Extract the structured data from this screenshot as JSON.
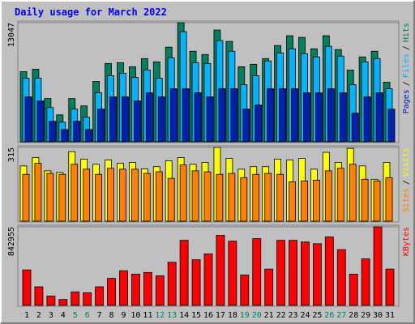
{
  "title": "Daily usage for March 2022",
  "weekend_color": "#008060",
  "chart_data": [
    {
      "type": "bar",
      "ylim": [
        0,
        13047
      ],
      "yticks": [
        13047
      ],
      "legend_separator": "/",
      "series": [
        {
          "name": "Hits",
          "color": "#00805c",
          "values": [
            7685,
            7953,
            4736,
            2949,
            4736,
            3932,
            6613,
            8579,
            8668,
            8221,
            9115,
            8758,
            10366,
            13047,
            9919,
            9562,
            12243,
            10992,
            8221,
            8489,
            9115,
            10545,
            11617,
            11438,
            10187,
            11617,
            10098,
            7864,
            9294,
            9919,
            6523
          ]
        },
        {
          "name": "Files",
          "color": "#00b4ff",
          "values": [
            6970,
            6970,
            3753,
            2145,
            3574,
            2681,
            5362,
            7238,
            7506,
            7060,
            7864,
            6970,
            9204,
            12064,
            8668,
            8579,
            11081,
            9919,
            6255,
            7238,
            8847,
            9740,
            10187,
            9651,
            9294,
            10455,
            9383,
            6255,
            8758,
            9115,
            5809
          ]
        },
        {
          "name": "Pages",
          "color": "#0020b0",
          "values": [
            4915,
            4468,
            2234,
            1340,
            2234,
            1340,
            3574,
            4915,
            4915,
            4468,
            5362,
            4915,
            5809,
            5809,
            5362,
            4915,
            5809,
            5809,
            3574,
            4021,
            5809,
            5809,
            5809,
            5362,
            5362,
            5809,
            5362,
            3128,
            4915,
            5362,
            3574
          ]
        }
      ]
    },
    {
      "type": "bar",
      "ylim": [
        0,
        315
      ],
      "yticks": [
        315
      ],
      "legend_separator": "/",
      "series": [
        {
          "name": "Visits",
          "color": "#ffff00",
          "values": [
            236,
            272,
            215,
            208,
            297,
            265,
            243,
            261,
            247,
            251,
            223,
            233,
            258,
            272,
            243,
            251,
            315,
            268,
            222,
            233,
            233,
            265,
            261,
            268,
            222,
            294,
            251,
            311,
            236,
            179,
            251
          ]
        },
        {
          "name": "Sites",
          "color": "#ff8000",
          "values": [
            200,
            247,
            204,
            200,
            243,
            222,
            200,
            226,
            222,
            222,
            204,
            211,
            183,
            240,
            215,
            211,
            200,
            204,
            186,
            200,
            204,
            200,
            168,
            172,
            175,
            215,
            226,
            243,
            179,
            172,
            186
          ]
        }
      ]
    },
    {
      "type": "bar",
      "ylim": [
        0,
        842955
      ],
      "yticks": [
        842955
      ],
      "categories": [
        "1",
        "2",
        "3",
        "4",
        "5",
        "6",
        "7",
        "8",
        "9",
        "10",
        "11",
        "12",
        "13",
        "14",
        "15",
        "16",
        "17",
        "18",
        "19",
        "20",
        "21",
        "22",
        "23",
        "24",
        "25",
        "26",
        "27",
        "28",
        "29",
        "30",
        "31"
      ],
      "weekend": [
        false,
        false,
        false,
        false,
        true,
        true,
        false,
        false,
        false,
        false,
        false,
        true,
        true,
        false,
        false,
        false,
        false,
        false,
        true,
        true,
        false,
        false,
        false,
        false,
        false,
        true,
        true,
        false,
        false,
        false,
        false
      ],
      "series": [
        {
          "name": "KBytes",
          "color": "#ff0000",
          "values": [
            380690,
            199410,
            99700,
            63450,
            145020,
            135960,
            199410,
            290050,
            371620,
            335360,
            353490,
            317230,
            462260,
            697910,
            489450,
            552900,
            752300,
            688850,
            326300,
            716040,
            389740,
            697910,
            697910,
            679800,
            661670,
            734170,
            598220,
            335360,
            498510,
            842955,
            389740
          ]
        }
      ]
    }
  ]
}
